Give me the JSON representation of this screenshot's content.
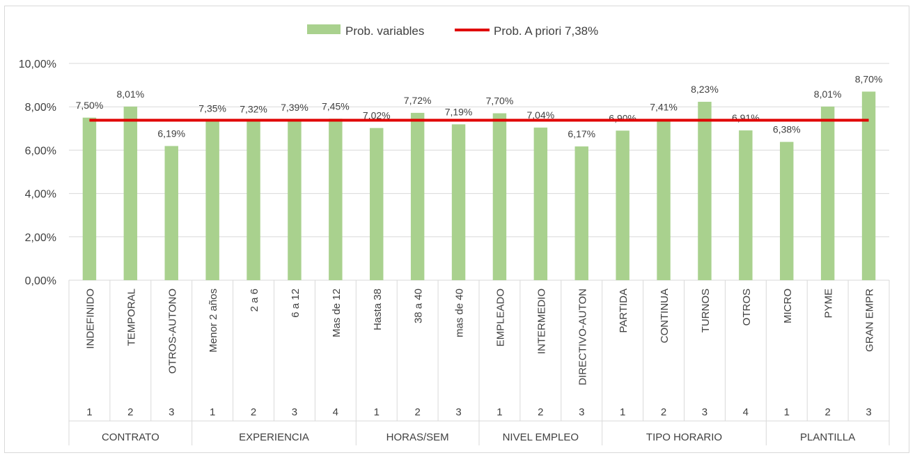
{
  "chart_data": {
    "type": "bar",
    "title": "",
    "xlabel": "",
    "ylabel": "",
    "ylim": [
      0,
      10
    ],
    "yticks": [
      "0,00%",
      "2,00%",
      "4,00%",
      "6,00%",
      "8,00%",
      "10,00%"
    ],
    "yunit": "%",
    "grid": true,
    "legend_position": "top",
    "legend": {
      "bars_label": "Prob. variables",
      "line_label": "Prob. A priori 7,38%"
    },
    "colors": {
      "bar": "#a9d18e",
      "line": "#e00000",
      "grid": "#d9d9d9",
      "text": "#404040"
    },
    "reference_line": {
      "name": "Prob. A priori 7,38%",
      "value": 7.38
    },
    "groups": [
      {
        "name": "CONTRATO",
        "items": [
          {
            "num": "1",
            "label": "INDEFINIDO",
            "value": 7.5,
            "value_label": "7,50%"
          },
          {
            "num": "2",
            "label": "TEMPORAL",
            "value": 8.01,
            "value_label": "8,01%"
          },
          {
            "num": "3",
            "label": "OTROS-AUTONO",
            "value": 6.19,
            "value_label": "6,19%"
          }
        ]
      },
      {
        "name": "EXPERIENCIA",
        "items": [
          {
            "num": "1",
            "label": "Menor 2 años",
            "value": 7.35,
            "value_label": "7,35%"
          },
          {
            "num": "2",
            "label": "2 a 6",
            "value": 7.32,
            "value_label": "7,32%"
          },
          {
            "num": "3",
            "label": "6 a 12",
            "value": 7.39,
            "value_label": "7,39%"
          },
          {
            "num": "4",
            "label": "Mas de 12",
            "value": 7.45,
            "value_label": "7,45%"
          }
        ]
      },
      {
        "name": "HORAS/SEM",
        "items": [
          {
            "num": "1",
            "label": "Hasta 38",
            "value": 7.02,
            "value_label": "7,02%"
          },
          {
            "num": "2",
            "label": "38 a 40",
            "value": 7.72,
            "value_label": "7,72%"
          },
          {
            "num": "3",
            "label": "mas de 40",
            "value": 7.19,
            "value_label": "7,19%"
          }
        ]
      },
      {
        "name": "NIVEL EMPLEO",
        "items": [
          {
            "num": "1",
            "label": "EMPLEADO",
            "value": 7.7,
            "value_label": "7,70%"
          },
          {
            "num": "2",
            "label": "INTERMEDIO",
            "value": 7.04,
            "value_label": "7,04%"
          },
          {
            "num": "3",
            "label": "DIRECTIVO-AUTON",
            "value": 6.17,
            "value_label": "6,17%"
          }
        ]
      },
      {
        "name": "TIPO HORARIO",
        "items": [
          {
            "num": "1",
            "label": "PARTIDA",
            "value": 6.9,
            "value_label": "6,90%"
          },
          {
            "num": "2",
            "label": "CONTINUA",
            "value": 7.41,
            "value_label": "7,41%"
          },
          {
            "num": "3",
            "label": "TURNOS",
            "value": 8.23,
            "value_label": "8,23%"
          },
          {
            "num": "4",
            "label": "OTROS",
            "value": 6.91,
            "value_label": "6,91%"
          }
        ]
      },
      {
        "name": "PLANTILLA",
        "items": [
          {
            "num": "1",
            "label": "MICRO",
            "value": 6.38,
            "value_label": "6,38%"
          },
          {
            "num": "2",
            "label": "PYME",
            "value": 8.01,
            "value_label": "8,01%"
          },
          {
            "num": "3",
            "label": "GRAN EMPR",
            "value": 8.7,
            "value_label": "8,70%"
          }
        ]
      }
    ]
  }
}
